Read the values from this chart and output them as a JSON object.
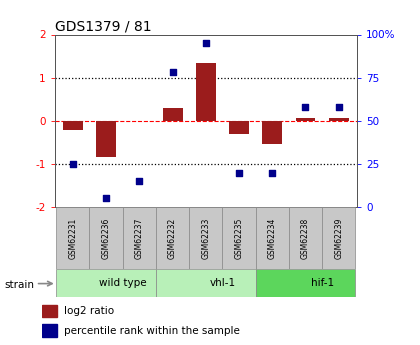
{
  "title": "GDS1379 / 81",
  "samples": [
    "GSM62231",
    "GSM62236",
    "GSM62237",
    "GSM62232",
    "GSM62233",
    "GSM62235",
    "GSM62234",
    "GSM62238",
    "GSM62239"
  ],
  "log2_ratio": [
    -0.22,
    -0.85,
    0.0,
    0.3,
    1.35,
    -0.3,
    -0.55,
    0.07,
    0.07
  ],
  "percentile_rank": [
    25,
    5,
    15,
    78,
    95,
    20,
    20,
    58,
    58
  ],
  "groups": [
    {
      "label": "wild type",
      "start": 0,
      "end": 3,
      "light_color": "#b8f0b8",
      "dark_color": "#b8f0b8"
    },
    {
      "label": "vhl-1",
      "start": 3,
      "end": 6,
      "light_color": "#b8f0b8",
      "dark_color": "#b8f0b8"
    },
    {
      "label": "hif-1",
      "start": 6,
      "end": 9,
      "light_color": "#5cd65c",
      "dark_color": "#5cd65c"
    }
  ],
  "bar_color": "#9B1C1C",
  "scatter_color": "#00008B",
  "ylim_left": [
    -2,
    2
  ],
  "ylim_right": [
    0,
    100
  ],
  "yticks_left": [
    -2,
    -1,
    0,
    1,
    2
  ],
  "yticks_right": [
    0,
    25,
    50,
    75,
    100
  ],
  "ytick_labels_right": [
    "0",
    "25",
    "50",
    "75",
    "100%"
  ],
  "bg_color": "#FFFFFF",
  "plot_bg": "#FFFFFF",
  "sample_box_color": "#C8C8C8",
  "sample_box_edge": "#888888"
}
